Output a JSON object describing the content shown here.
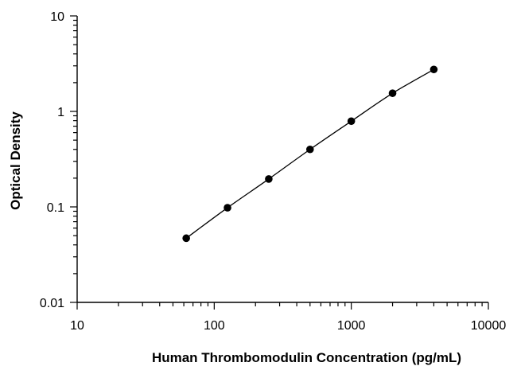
{
  "chart_data": {
    "type": "scatter",
    "title": "",
    "xlabel": "Human Thrombomodulin Concentration (pg/mL)",
    "ylabel": "Optical Density",
    "x_scale": "log",
    "y_scale": "log",
    "xlim": [
      10,
      10000
    ],
    "ylim": [
      0.01,
      10
    ],
    "x_ticks": [
      "10",
      "100",
      "1000",
      "10000"
    ],
    "y_ticks": [
      "0.01",
      "0.1",
      "1",
      "10"
    ],
    "grid": false,
    "legend": "none",
    "marker_color": "#000000",
    "series": [
      {
        "x": [
          62.5,
          125,
          250,
          500,
          1000,
          2000,
          4000
        ],
        "y": [
          0.047,
          0.098,
          0.196,
          0.4,
          0.79,
          1.55,
          2.75
        ]
      }
    ],
    "curve_fit": true
  }
}
